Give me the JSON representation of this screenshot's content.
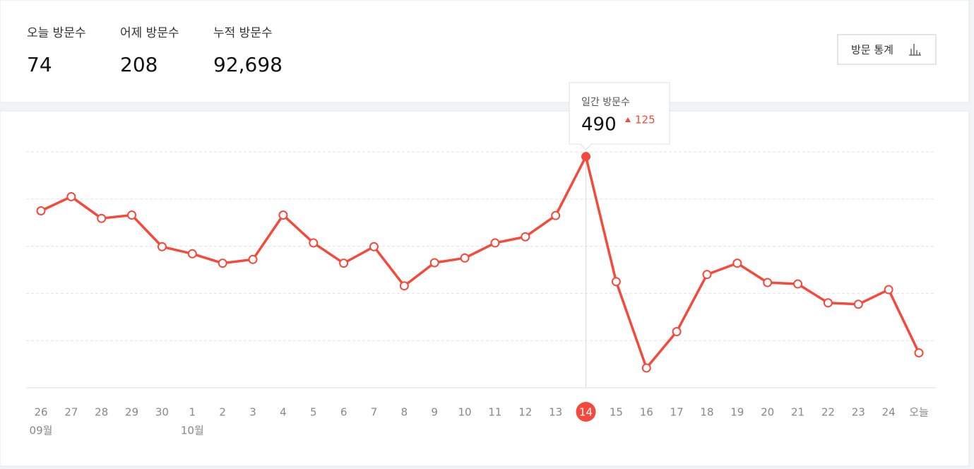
{
  "summary": [
    {
      "label": "오늘 방문수",
      "value": 74
    },
    {
      "label": "어제 방문수",
      "value": 208
    },
    {
      "label": "누적 방문수",
      "value": "92,698"
    }
  ],
  "button": "방문 통계",
  "chart_data": {
    "type": "line",
    "categories": [
      "26",
      "27",
      "28",
      "29",
      "30",
      "1",
      "2",
      "3",
      "4",
      "5",
      "6",
      "7",
      "8",
      "9",
      "10",
      "11",
      "12",
      "13",
      "14",
      "15",
      "16",
      "17",
      "18",
      "19",
      "20",
      "21",
      "22",
      "23",
      "24",
      "오늘"
    ],
    "month_labels": [
      "09월",
      null,
      null,
      null,
      null,
      "10월",
      null,
      null,
      null,
      null,
      null,
      null,
      null,
      null,
      null,
      null,
      null,
      null,
      null,
      null,
      null,
      null,
      null,
      null,
      null,
      null,
      null,
      null,
      null,
      null
    ],
    "values": [
      375,
      405,
      359,
      366,
      299,
      284,
      264,
      272,
      366,
      307,
      264,
      299,
      216,
      265,
      275,
      307,
      320,
      365,
      490,
      225,
      42,
      119,
      240,
      264,
      223,
      220,
      180,
      177,
      208,
      74
    ],
    "color": "#f4493b",
    "ylim": [
      0,
      500
    ],
    "yticks": [
      0,
      100,
      200,
      300,
      400,
      500
    ],
    "grid": true,
    "selected": 18,
    "tooltip": {
      "title": "일간 방문수",
      "delta": 125
    }
  }
}
